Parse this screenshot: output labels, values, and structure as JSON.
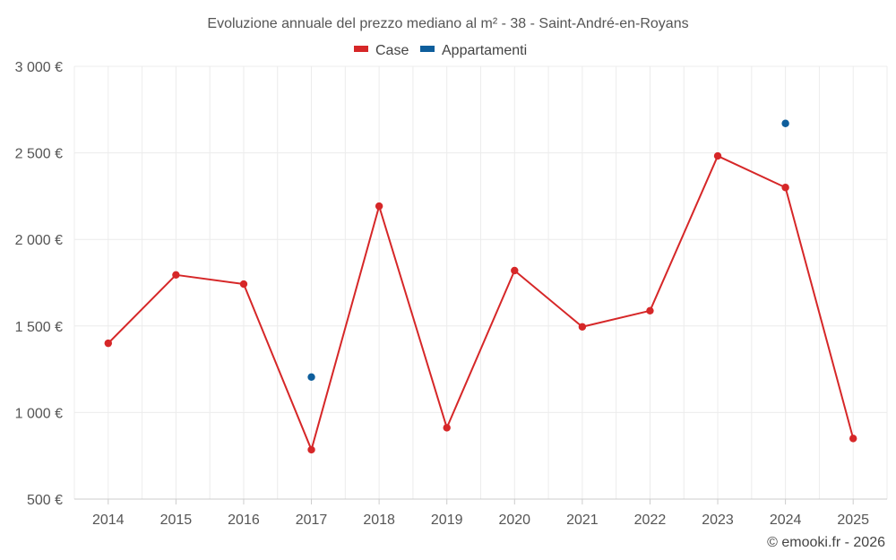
{
  "chart_data": {
    "type": "line",
    "title": "Evoluzione annuale del prezzo mediano al m² - 38 - Saint-André-en-Royans",
    "categories": [
      "2014",
      "2015",
      "2016",
      "2017",
      "2018",
      "2019",
      "2020",
      "2021",
      "2022",
      "2023",
      "2024",
      "2025"
    ],
    "series": [
      {
        "name": "Case",
        "color": "#d62728",
        "values": [
          1400,
          1795,
          1742,
          785,
          2192,
          912,
          1820,
          1495,
          1588,
          2482,
          2300,
          850
        ]
      },
      {
        "name": "Appartamenti",
        "color": "#0e5e9c",
        "values": [
          null,
          null,
          null,
          1205,
          null,
          null,
          null,
          null,
          null,
          null,
          2670,
          null
        ]
      }
    ],
    "ylim": [
      500,
      3000
    ],
    "yticks": [
      500,
      1000,
      1500,
      2000,
      2500,
      3000
    ],
    "ytick_labels": [
      "500 €",
      "1 000 €",
      "1 500 €",
      "2 000 €",
      "2 500 €",
      "3 000 €"
    ],
    "xlabel": "",
    "ylabel": "",
    "grid": true,
    "legend_position": "top-center"
  },
  "credit": "© emooki.fr - 2026"
}
